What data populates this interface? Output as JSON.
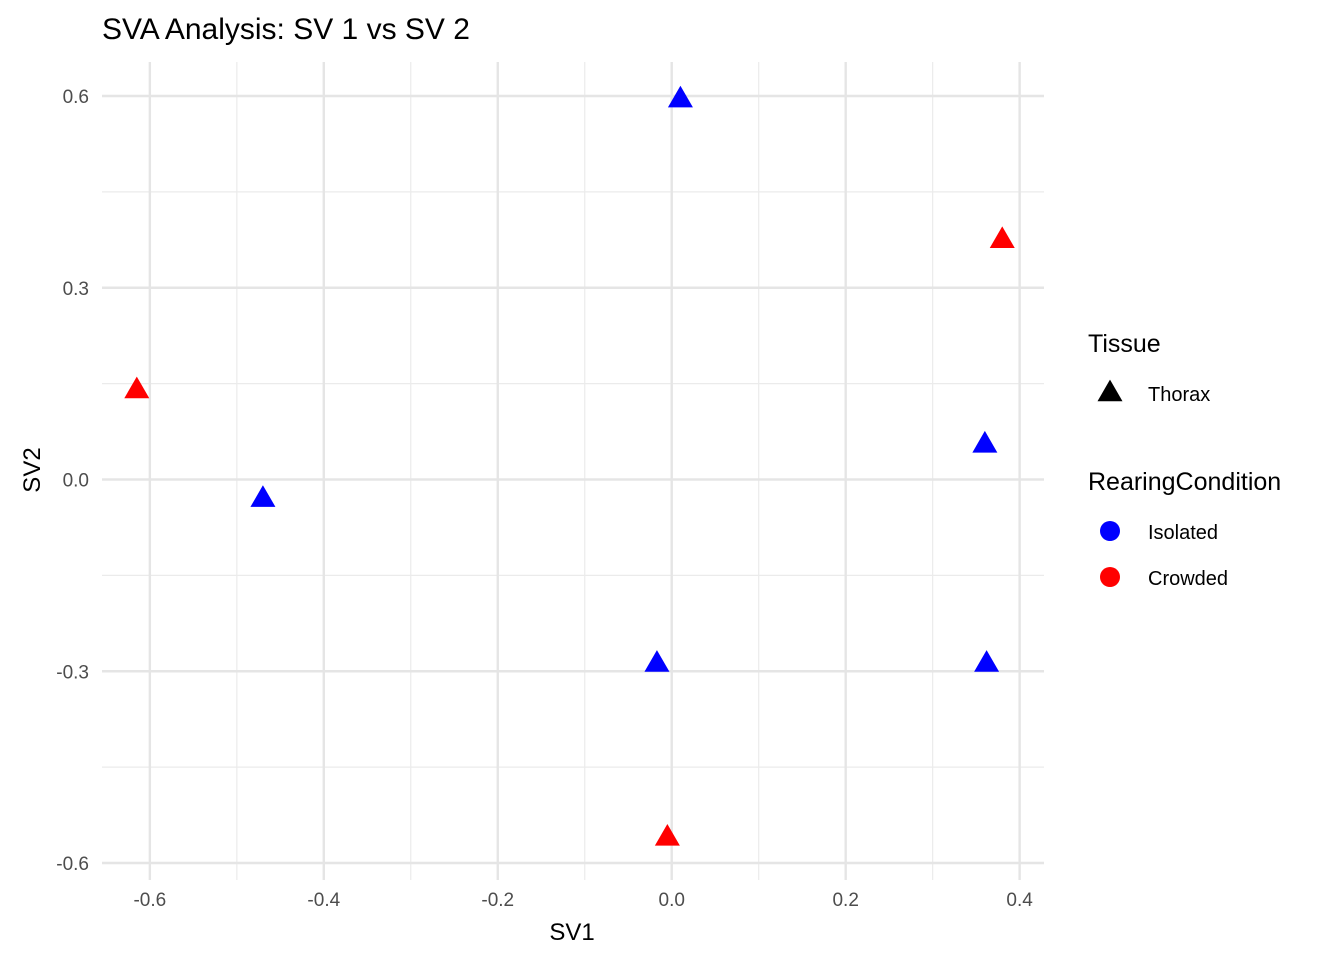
{
  "chart_data": {
    "type": "scatter",
    "title": "SVA Analysis: SV 1  vs SV 2",
    "xlabel": "SV1",
    "ylabel": "SV2",
    "xlim": [
      -0.655,
      0.428
    ],
    "ylim": [
      -0.6,
      0.6
    ],
    "x_ticks": [
      -0.6,
      -0.4,
      -0.2,
      0.0,
      0.2,
      0.4
    ],
    "x_tick_labels": [
      "-0.6",
      "-0.4",
      "-0.2",
      "0.0",
      "0.2",
      "0.4"
    ],
    "y_ticks": [
      0.6,
      0.3,
      0.0,
      -0.3,
      -0.6
    ],
    "y_tick_labels": [
      "0.6",
      "0.3",
      "0.0",
      "-0.3",
      "-0.6"
    ],
    "grid": true,
    "legend_position": "right",
    "colors": {
      "Isolated": "#0000ff",
      "Crowded": "#ff0000",
      "shape_key": "#000000"
    },
    "legends": [
      {
        "title": "Tissue",
        "kind": "shape",
        "items": [
          {
            "label": "Thorax",
            "shape": "triangle"
          }
        ]
      },
      {
        "title": "RearingCondition",
        "kind": "color",
        "items": [
          {
            "label": "Isolated",
            "color": "#0000ff"
          },
          {
            "label": "Crowded",
            "color": "#ff0000"
          }
        ]
      }
    ],
    "points": [
      {
        "x": 0.01,
        "y": 0.595,
        "group": "Isolated",
        "shape": "Thorax"
      },
      {
        "x": 0.38,
        "y": 0.375,
        "group": "Crowded",
        "shape": "Thorax"
      },
      {
        "x": -0.615,
        "y": 0.14,
        "group": "Crowded",
        "shape": "Thorax"
      },
      {
        "x": 0.36,
        "y": 0.055,
        "group": "Isolated",
        "shape": "Thorax"
      },
      {
        "x": -0.47,
        "y": -0.03,
        "group": "Isolated",
        "shape": "Thorax"
      },
      {
        "x": -0.017,
        "y": -0.288,
        "group": "Isolated",
        "shape": "Thorax"
      },
      {
        "x": 0.362,
        "y": -0.288,
        "group": "Isolated",
        "shape": "Thorax"
      },
      {
        "x": -0.005,
        "y": -0.56,
        "group": "Crowded",
        "shape": "Thorax"
      }
    ]
  }
}
